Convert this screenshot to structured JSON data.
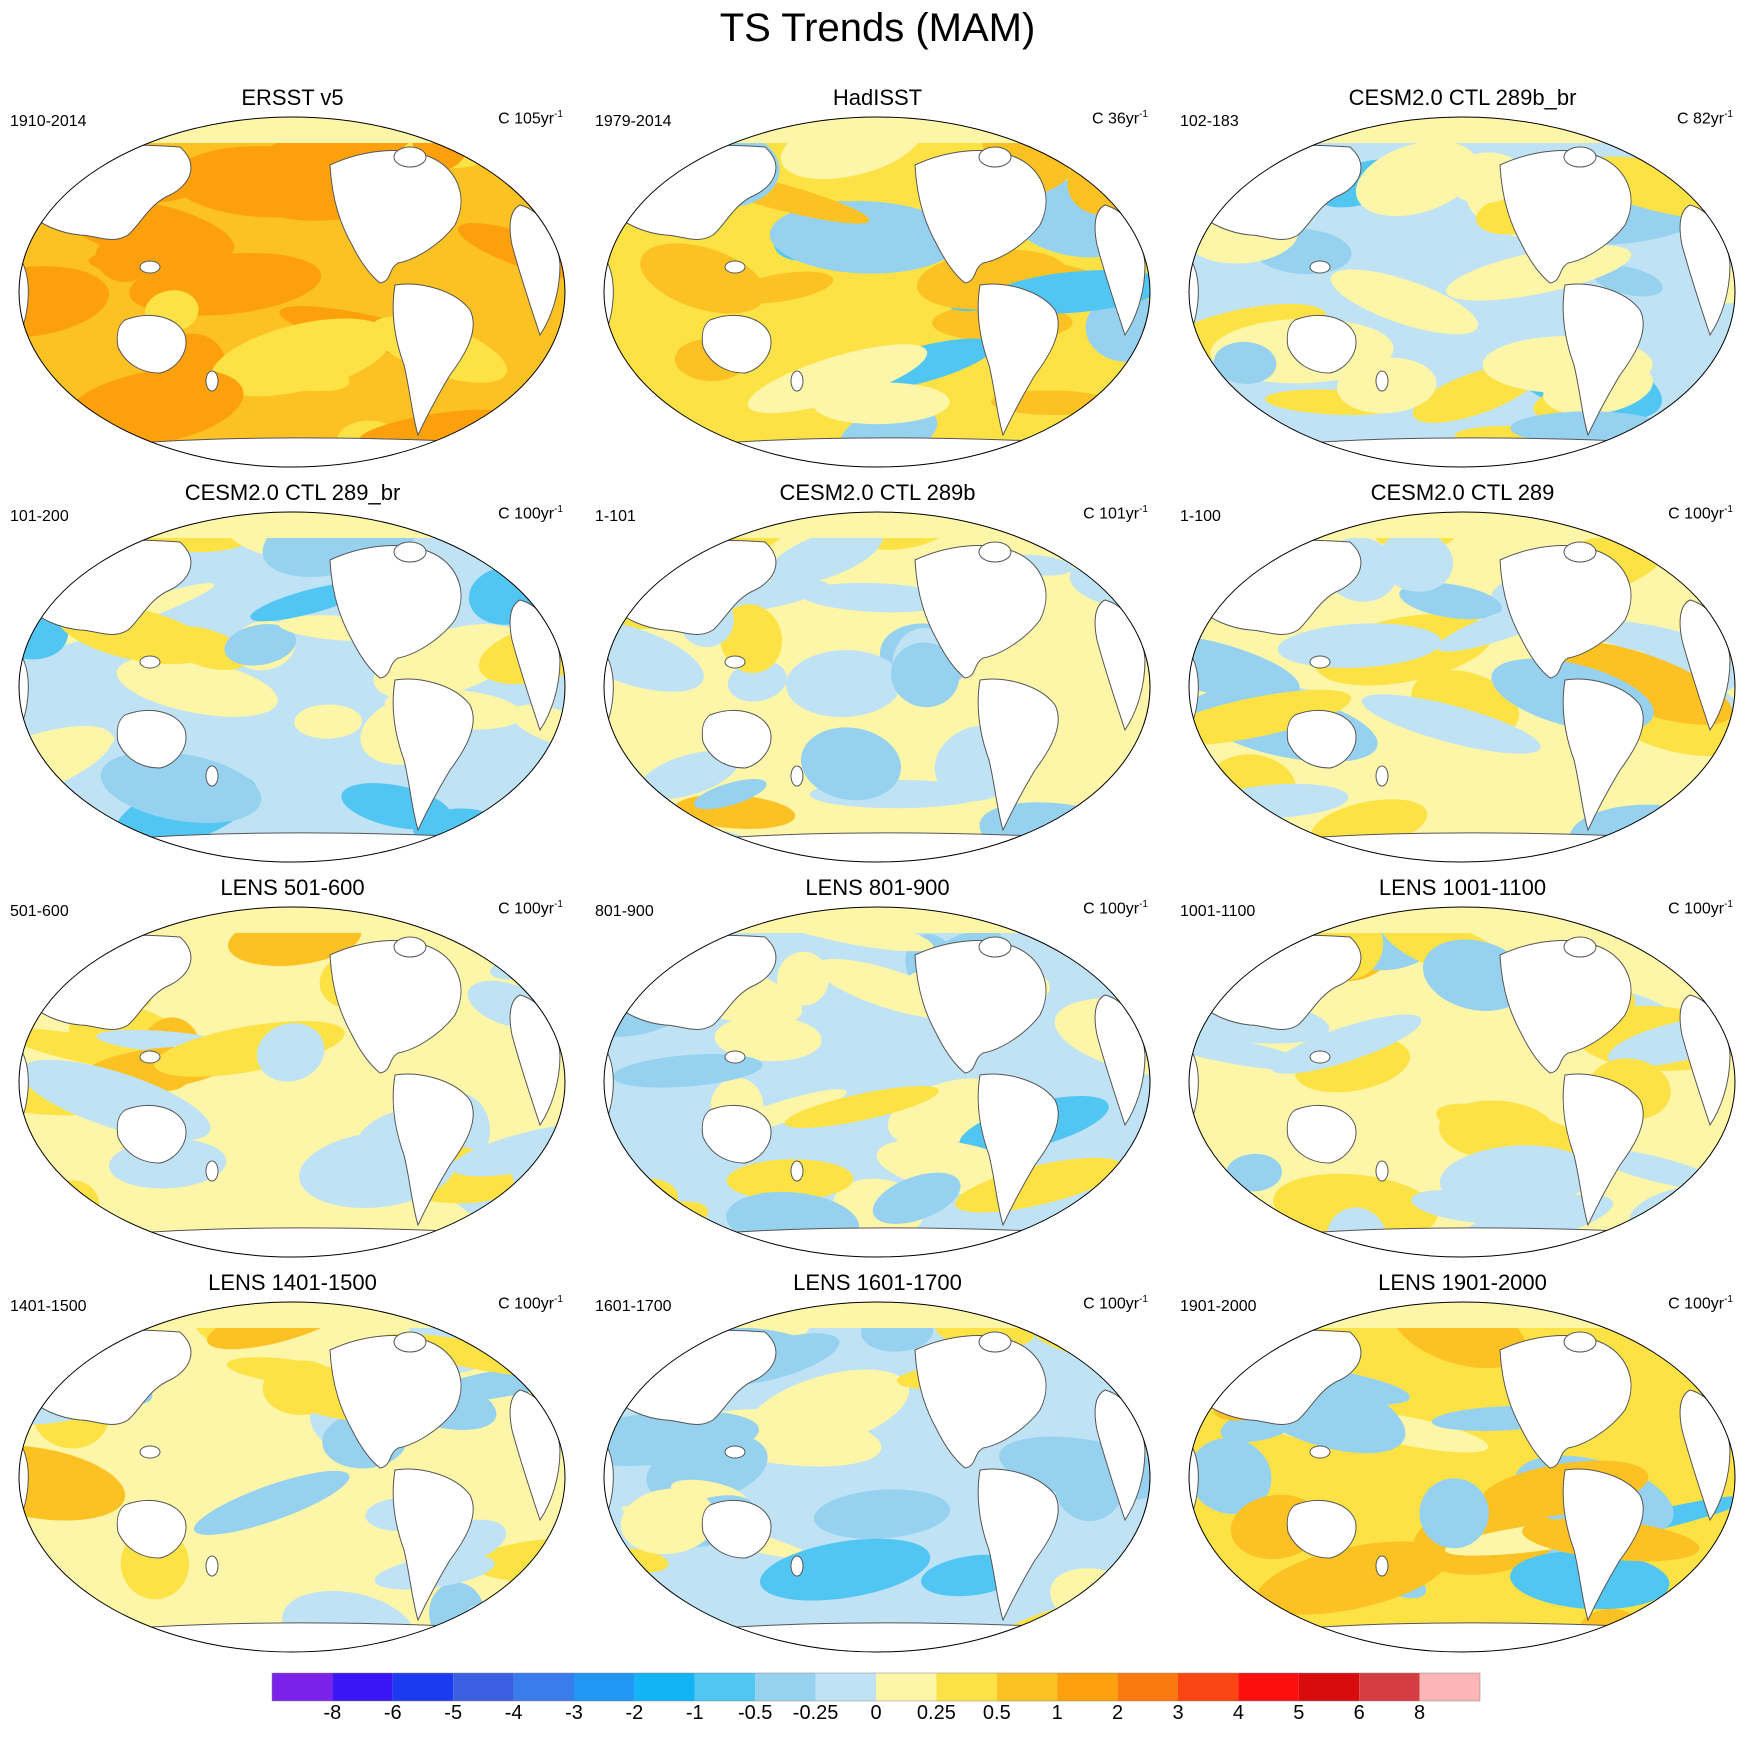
{
  "title": "TS Trends (MAM)",
  "chart_data": {
    "type": "heatmap",
    "title": "TS Trends (MAM)",
    "colorbar": {
      "labels": [
        "-8",
        "-6",
        "-5",
        "-4",
        "-3",
        "-2",
        "-1",
        "-0.5",
        "-0.25",
        "0",
        "0.25",
        "0.5",
        "1",
        "2",
        "3",
        "4",
        "5",
        "6",
        "8"
      ],
      "colors": [
        "#7b22e8",
        "#3b16f5",
        "#1a3bf0",
        "#3b5fe0",
        "#3a7cec",
        "#2196f3",
        "#12b4f5",
        "#52c6f2",
        "#96d2ef",
        "#bfe2f5",
        "#fdf6a8",
        "#fde245",
        "#fcc122",
        "#fca10c",
        "#fb7a10",
        "#fb4512",
        "#fb0f0f",
        "#d80c0c",
        "#d63d42",
        "#fdb6b6"
      ]
    },
    "panels": [
      {
        "title": "ERSST v5",
        "period": "1910-2014",
        "units_prefix": "C ",
        "units_value": "105yr",
        "units_exp": "-1",
        "dominant": "warm"
      },
      {
        "title": "HadISST",
        "period": "1979-2014",
        "units_prefix": "C ",
        "units_value": "36yr",
        "units_exp": "-1",
        "dominant": "mixed-warm"
      },
      {
        "title": "CESM2.0 CTL 289b_br",
        "period": "102-183",
        "units_prefix": "C ",
        "units_value": "82yr",
        "units_exp": "-1",
        "dominant": "mixed-cool"
      },
      {
        "title": "CESM2.0 CTL 289_br",
        "period": "101-200",
        "units_prefix": "C ",
        "units_value": "100yr",
        "units_exp": "-1",
        "dominant": "mixed-cool"
      },
      {
        "title": "CESM2.0 CTL 289b",
        "period": "1-101",
        "units_prefix": "C ",
        "units_value": "101yr",
        "units_exp": "-1",
        "dominant": "mixed"
      },
      {
        "title": "CESM2.0 CTL 289",
        "period": "1-100",
        "units_prefix": "C ",
        "units_value": "100yr",
        "units_exp": "-1",
        "dominant": "mixed"
      },
      {
        "title": "LENS 501-600",
        "period": "501-600",
        "units_prefix": "C ",
        "units_value": "100yr",
        "units_exp": "-1",
        "dominant": "mixed"
      },
      {
        "title": "LENS 801-900",
        "period": "801-900",
        "units_prefix": "C ",
        "units_value": "100yr",
        "units_exp": "-1",
        "dominant": "mixed-cool"
      },
      {
        "title": "LENS 1001-1100",
        "period": "1001-1100",
        "units_prefix": "C ",
        "units_value": "100yr",
        "units_exp": "-1",
        "dominant": "mixed"
      },
      {
        "title": "LENS 1401-1500",
        "period": "1401-1500",
        "units_prefix": "C ",
        "units_value": "100yr",
        "units_exp": "-1",
        "dominant": "mixed"
      },
      {
        "title": "LENS 1601-1700",
        "period": "1601-1700",
        "units_prefix": "C ",
        "units_value": "100yr",
        "units_exp": "-1",
        "dominant": "mixed-cool"
      },
      {
        "title": "LENS 1901-2000",
        "period": "1901-2000",
        "units_prefix": "C ",
        "units_value": "100yr",
        "units_exp": "-1",
        "dominant": "mixed-warm"
      }
    ]
  }
}
